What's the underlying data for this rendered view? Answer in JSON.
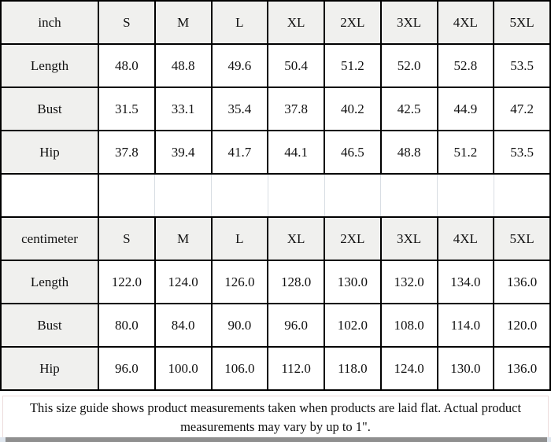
{
  "chart_data": [
    {
      "type": "table",
      "unit_label": "inch",
      "columns": [
        "inch",
        "S",
        "M",
        "L",
        "XL",
        "2XL",
        "3XL",
        "4XL",
        "5XL"
      ],
      "rows": [
        [
          "Length",
          "48.0",
          "48.8",
          "49.6",
          "50.4",
          "51.2",
          "52.0",
          "52.8",
          "53.5"
        ],
        [
          "Bust",
          "31.5",
          "33.1",
          "35.4",
          "37.8",
          "40.2",
          "42.5",
          "44.9",
          "47.2"
        ],
        [
          "Hip",
          "37.8",
          "39.4",
          "41.7",
          "44.1",
          "46.5",
          "48.8",
          "51.2",
          "53.5"
        ]
      ]
    },
    {
      "type": "table",
      "unit_label": "centimeter",
      "columns": [
        "centimeter",
        "S",
        "M",
        "L",
        "XL",
        "2XL",
        "3XL",
        "4XL",
        "5XL"
      ],
      "rows": [
        [
          "Length",
          "122.0",
          "124.0",
          "126.0",
          "128.0",
          "130.0",
          "132.0",
          "134.0",
          "136.0"
        ],
        [
          "Bust",
          "80.0",
          "84.0",
          "90.0",
          "96.0",
          "102.0",
          "108.0",
          "114.0",
          "120.0"
        ],
        [
          "Hip",
          "96.0",
          "100.0",
          "106.0",
          "112.0",
          "118.0",
          "124.0",
          "130.0",
          "136.0"
        ]
      ]
    }
  ],
  "footer": {
    "note": "This size guide shows product measurements taken when products are laid flat. Actual product measurements may vary by up to 1\"."
  },
  "colors": {
    "header_cell_bg": "#f0f0ee",
    "grid_border": "#000000",
    "spacer_separator": "#d8dde3",
    "footer_border": "#ecdcdc",
    "scrollbar_thumb": "#8f8f8f"
  }
}
